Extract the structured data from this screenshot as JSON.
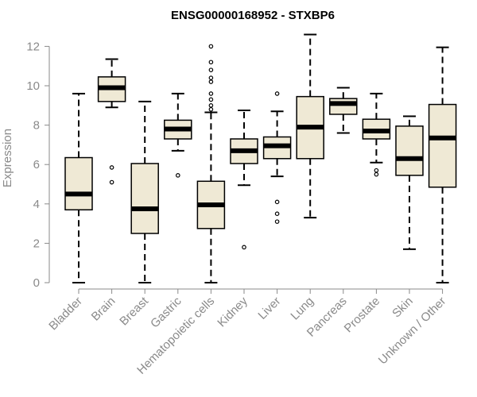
{
  "chart_data": {
    "type": "boxplot",
    "title": "ENSG00000168952 - STXBP6",
    "xlabel": "",
    "ylabel": "Expression",
    "ylim": [
      0,
      12.6
    ],
    "yticks": [
      0,
      2,
      4,
      6,
      8,
      10,
      12
    ],
    "box_color": "#efe9d5",
    "categories": [
      "Bladder",
      "Brain",
      "Breast",
      "Gastric",
      "Hematopoietic cells",
      "Kidney",
      "Liver",
      "Lung",
      "Pancreas",
      "Prostate",
      "Skin",
      "Unknown / Other"
    ],
    "series": [
      {
        "name": "Bladder",
        "min": 0.0,
        "q1": 3.7,
        "median": 4.5,
        "q3": 6.35,
        "max": 9.6,
        "outliers": []
      },
      {
        "name": "Brain",
        "min": 8.9,
        "q1": 9.2,
        "median": 9.9,
        "q3": 10.45,
        "max": 11.35,
        "outliers": [
          5.85,
          5.1
        ]
      },
      {
        "name": "Breast",
        "min": 0.0,
        "q1": 2.5,
        "median": 3.75,
        "q3": 6.05,
        "max": 9.2,
        "outliers": []
      },
      {
        "name": "Gastric",
        "min": 6.7,
        "q1": 7.3,
        "median": 7.8,
        "q3": 8.25,
        "max": 9.6,
        "outliers": [
          5.45
        ]
      },
      {
        "name": "Hematopoietic cells",
        "min": 0.0,
        "q1": 2.75,
        "median": 3.95,
        "q3": 5.15,
        "max": 8.65,
        "outliers": [
          12.0,
          11.2,
          10.8,
          10.4,
          10.2,
          9.6,
          9.3,
          9.0,
          8.8
        ]
      },
      {
        "name": "Kidney",
        "min": 4.95,
        "q1": 6.05,
        "median": 6.7,
        "q3": 7.3,
        "max": 8.75,
        "outliers": [
          1.8
        ]
      },
      {
        "name": "Liver",
        "min": 5.4,
        "q1": 6.3,
        "median": 6.95,
        "q3": 7.4,
        "max": 8.7,
        "outliers": [
          9.6,
          4.1,
          3.5,
          3.1
        ]
      },
      {
        "name": "Lung",
        "min": 3.3,
        "q1": 6.3,
        "median": 7.9,
        "q3": 9.45,
        "max": 12.6,
        "outliers": []
      },
      {
        "name": "Pancreas",
        "min": 7.6,
        "q1": 8.55,
        "median": 9.1,
        "q3": 9.35,
        "max": 9.9,
        "outliers": []
      },
      {
        "name": "Prostate",
        "min": 6.1,
        "q1": 7.3,
        "median": 7.7,
        "q3": 8.3,
        "max": 9.6,
        "outliers": [
          5.7,
          5.5
        ]
      },
      {
        "name": "Skin",
        "min": 1.7,
        "q1": 5.45,
        "median": 6.3,
        "q3": 7.95,
        "max": 8.45,
        "outliers": []
      },
      {
        "name": "Unknown / Other",
        "min": 0.0,
        "q1": 4.85,
        "median": 7.35,
        "q3": 9.05,
        "max": 11.95,
        "outliers": []
      }
    ]
  }
}
